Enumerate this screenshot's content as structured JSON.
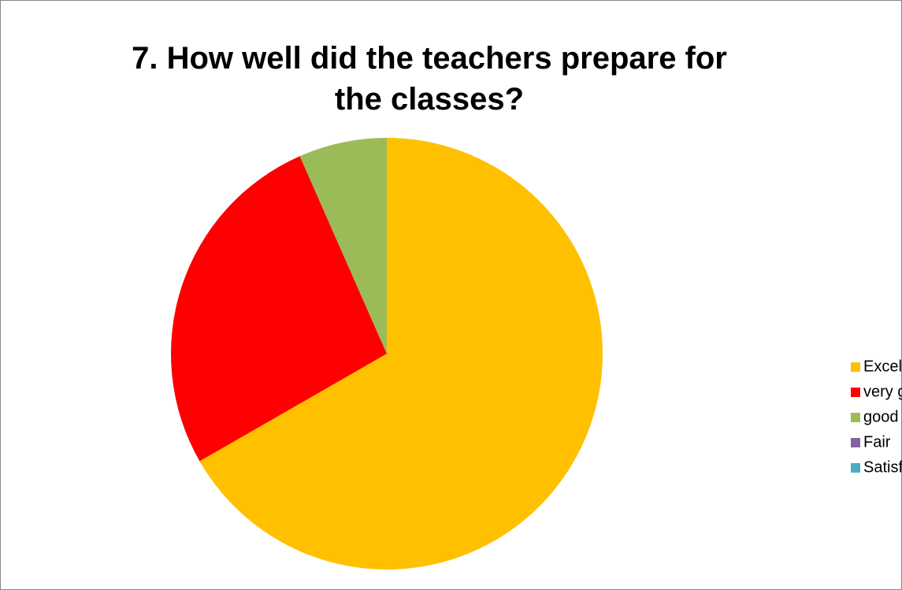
{
  "chart_data": {
    "type": "pie",
    "title": "7. How well did the teachers prepare for the classes?",
    "categories": [
      "Excellent",
      "very good",
      "good",
      "Fair",
      "Satisfied"
    ],
    "values": [
      66.7,
      26.7,
      6.6,
      0,
      0
    ],
    "colors": [
      "#ffc000",
      "#ff0000",
      "#9bbb59",
      "#8064a2",
      "#4bacc6"
    ],
    "legend": "right"
  }
}
